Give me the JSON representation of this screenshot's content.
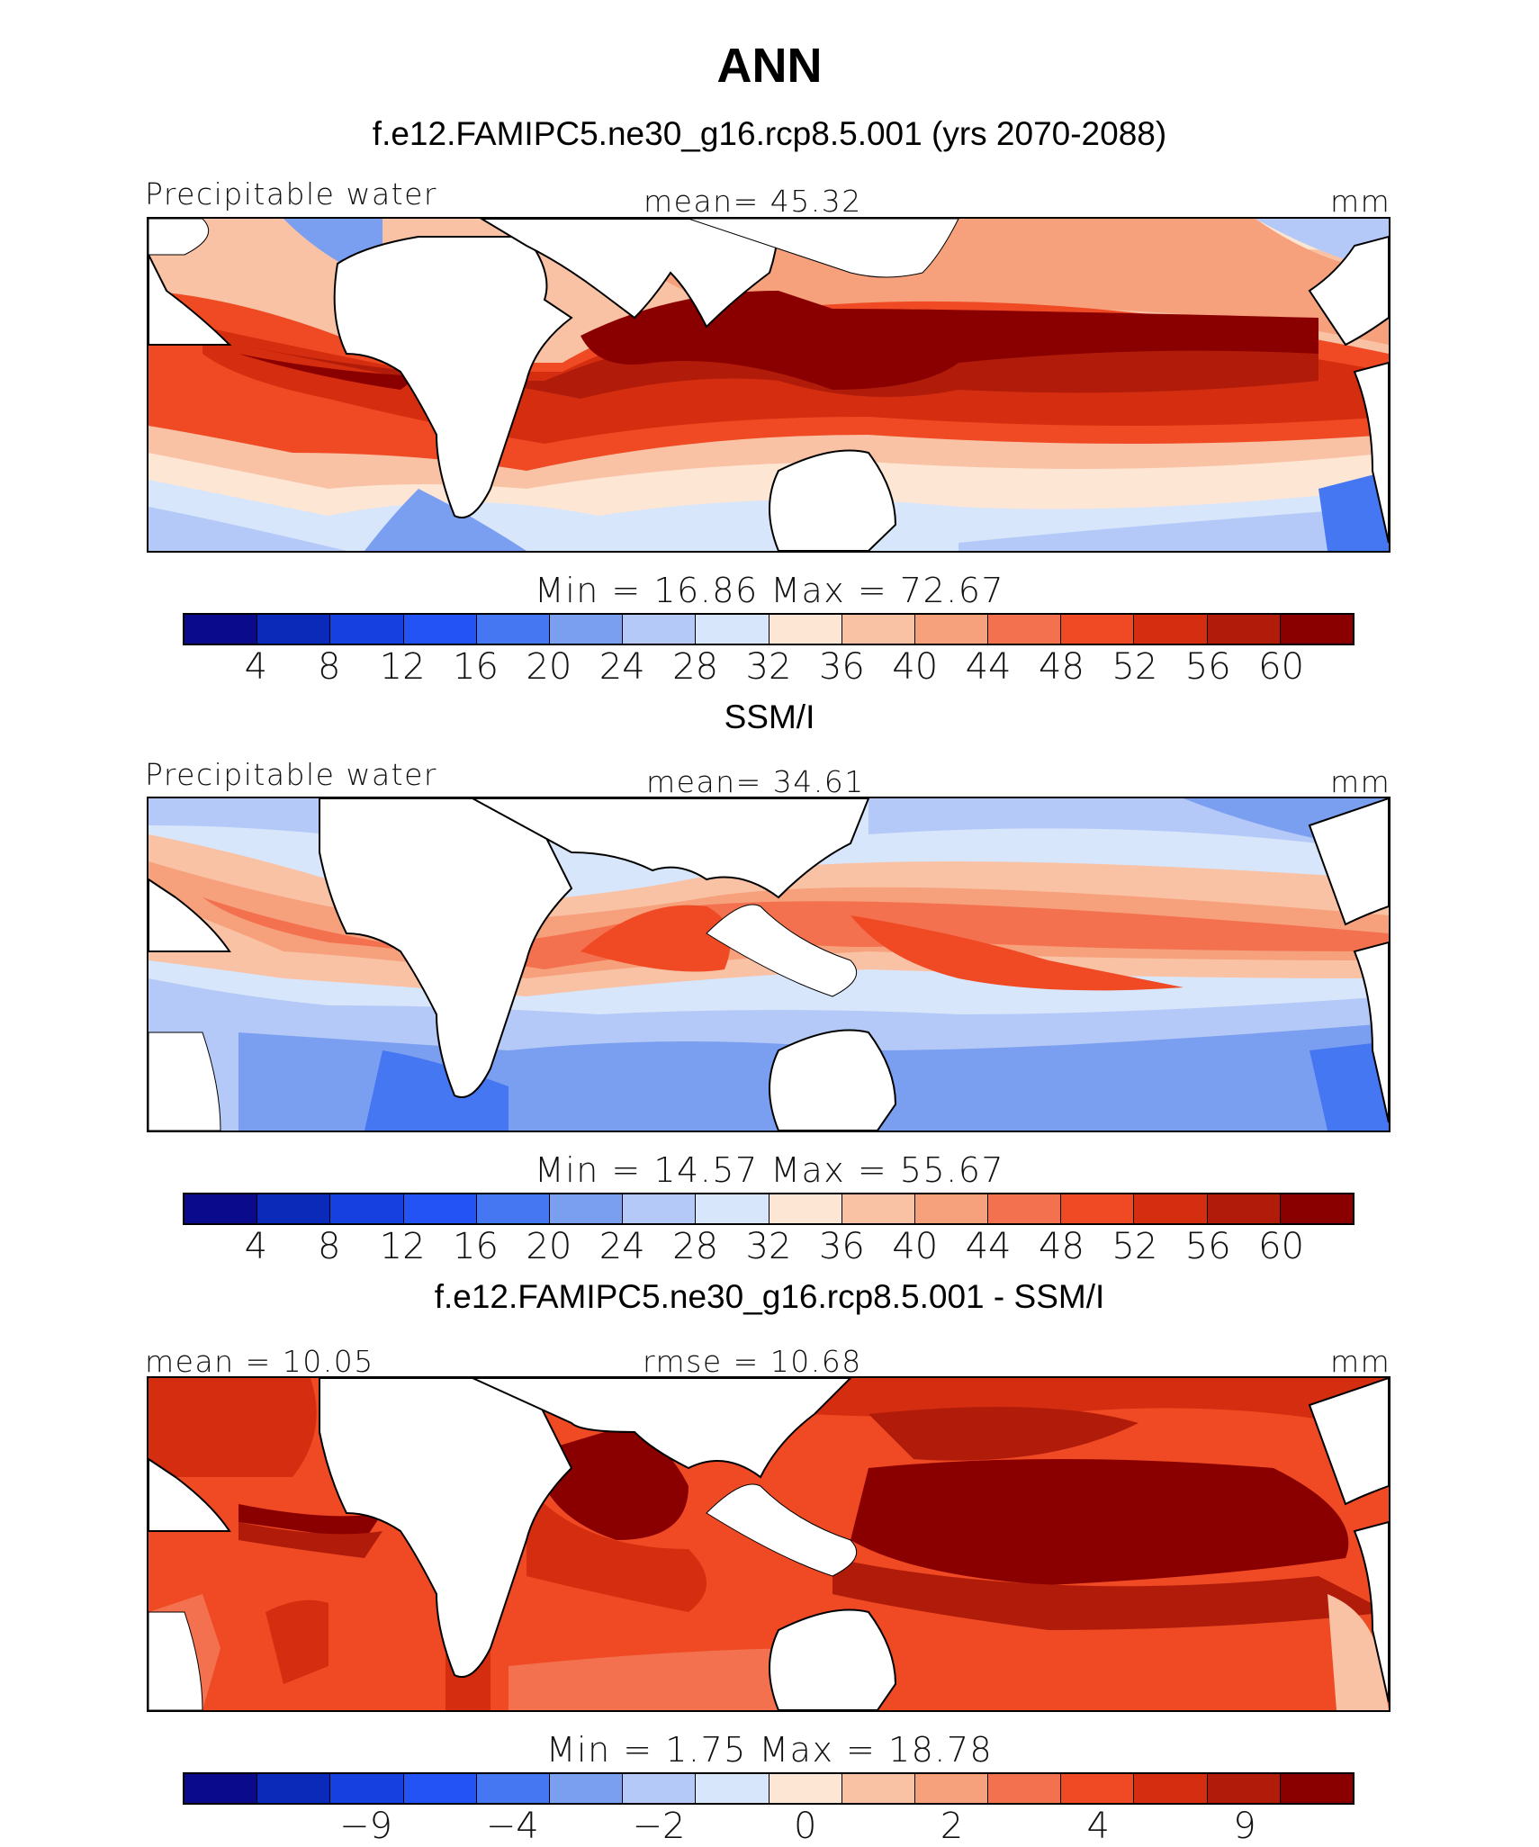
{
  "figure": {
    "title": "ANN"
  },
  "panels": [
    {
      "id": "model",
      "subtitle": "f.e12.FAMIPC5.ne30_g16.rcp8.5.001 (yrs 2070-2088)",
      "left_label": "Precipitable water",
      "center_label": "mean=   45.32",
      "right_label": "mm",
      "minmax_label": "Min  =    16.86  Max  =    72.67",
      "stats": {
        "mean": 45.32,
        "min": 16.86,
        "max": 72.67
      },
      "colorbar": {
        "tick_labels": [
          "4",
          "8",
          "12",
          "16",
          "20",
          "24",
          "28",
          "32",
          "36",
          "40",
          "44",
          "48",
          "52",
          "56",
          "60"
        ],
        "colors": [
          "#0a0a8c",
          "#0c2ab9",
          "#1640df",
          "#2353f5",
          "#4677f2",
          "#7b9ff0",
          "#b4c9f7",
          "#d8e6fb",
          "#fde6d4",
          "#f9c2a5",
          "#f6a07c",
          "#f3714f",
          "#ef4a24",
          "#d52d0f",
          "#b11c0a",
          "#8a0000"
        ]
      }
    },
    {
      "id": "obs",
      "subtitle": "SSM/I",
      "left_label": "Precipitable water",
      "center_label": "mean=   34.61",
      "right_label": "mm",
      "minmax_label": "Min  =    14.57  Max  =    55.67",
      "stats": {
        "mean": 34.61,
        "min": 14.57,
        "max": 55.67
      },
      "colorbar": {
        "tick_labels": [
          "4",
          "8",
          "12",
          "16",
          "20",
          "24",
          "28",
          "32",
          "36",
          "40",
          "44",
          "48",
          "52",
          "56",
          "60"
        ],
        "colors": [
          "#0a0a8c",
          "#0c2ab9",
          "#1640df",
          "#2353f5",
          "#4677f2",
          "#7b9ff0",
          "#b4c9f7",
          "#d8e6fb",
          "#fde6d4",
          "#f9c2a5",
          "#f6a07c",
          "#f3714f",
          "#ef4a24",
          "#d52d0f",
          "#b11c0a",
          "#8a0000"
        ]
      }
    },
    {
      "id": "diff",
      "subtitle": "f.e12.FAMIPC5.ne30_g16.rcp8.5.001 - SSM/I",
      "left_label": "mean =    10.05",
      "center_label": "rmse  =    10.68",
      "right_label": "mm",
      "minmax_label": "Min  =     1.75  Max  =    18.78",
      "stats": {
        "mean": 10.05,
        "rmse": 10.68,
        "min": 1.75,
        "max": 18.78
      },
      "colorbar": {
        "tick_labels": [
          "−9",
          "−4",
          "−2",
          "0",
          "2",
          "4",
          "9"
        ],
        "colors": [
          "#0a0a8c",
          "#0c2ab9",
          "#1640df",
          "#2353f5",
          "#4677f2",
          "#7b9ff0",
          "#b4c9f7",
          "#d8e6fb",
          "#fde6d4",
          "#f9c2a5",
          "#f6a07c",
          "#f3714f",
          "#ef4a24",
          "#d52d0f",
          "#b11c0a",
          "#8a0000"
        ]
      }
    }
  ]
}
